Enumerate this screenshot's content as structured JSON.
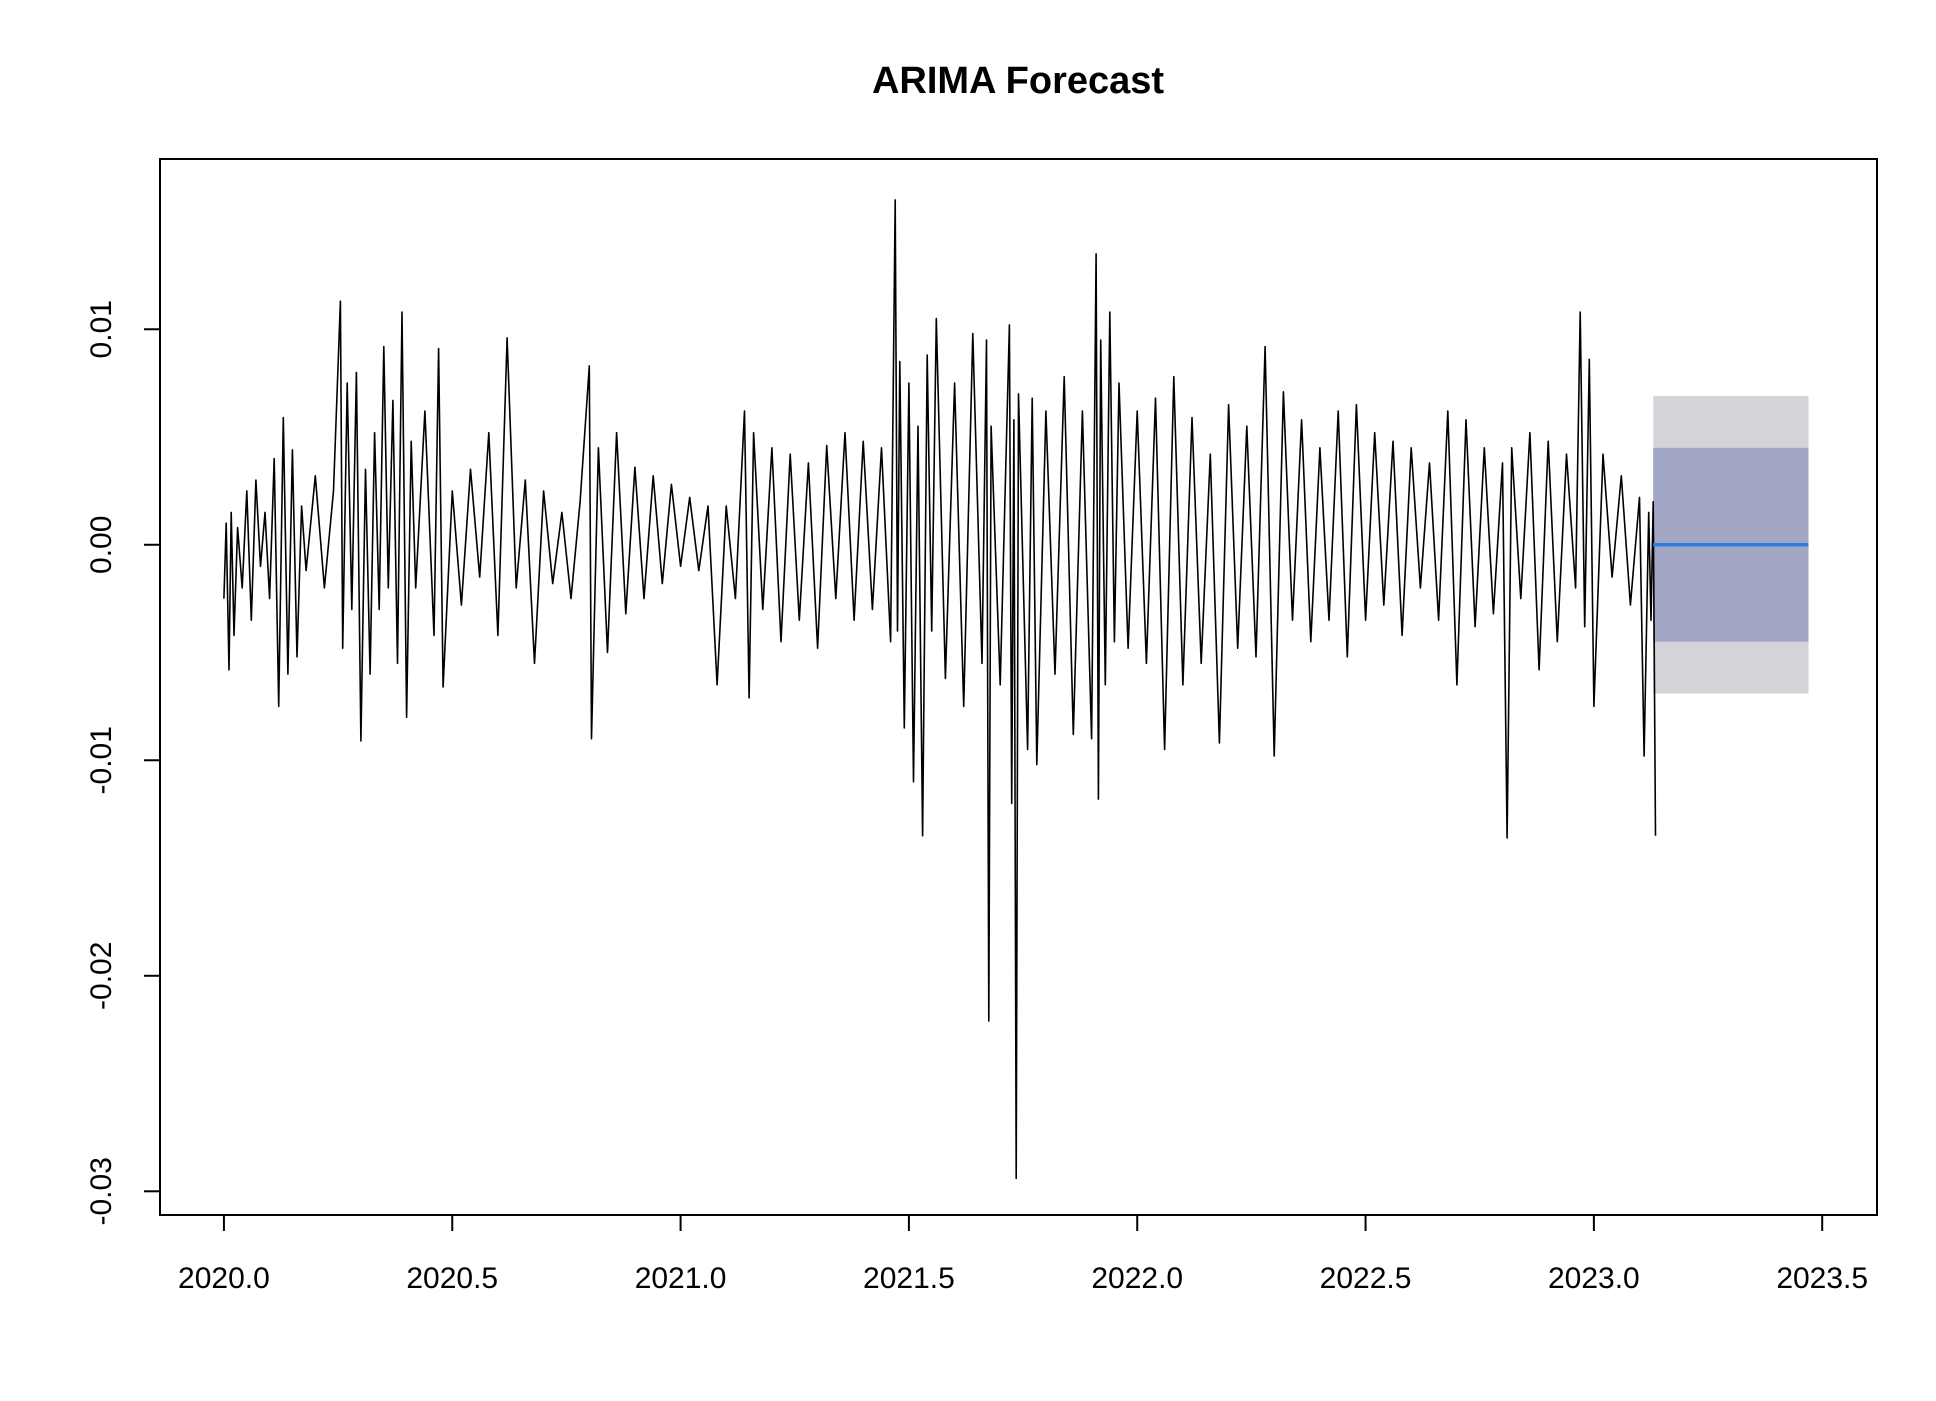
{
  "chart_data": {
    "type": "line",
    "title": "ARIMA Forecast",
    "xlabel": "",
    "ylabel": "",
    "xlim": [
      2019.86,
      2023.62
    ],
    "ylim": [
      -0.0311,
      0.0179
    ],
    "x_ticks": [
      2020.0,
      2020.5,
      2021.0,
      2021.5,
      2022.0,
      2022.5,
      2023.0,
      2023.5
    ],
    "x_tick_labels": [
      "2020.0",
      "2020.5",
      "2021.0",
      "2021.5",
      "2022.0",
      "2022.5",
      "2023.0",
      "2023.5"
    ],
    "y_ticks": [
      -0.03,
      -0.02,
      -0.01,
      0.0,
      0.01
    ],
    "y_tick_labels": [
      "-0.03",
      "-0.02",
      "-0.01",
      "0.00",
      "0.01"
    ],
    "grid": false,
    "legend": "none",
    "series": [
      {
        "role": "observed",
        "color": "#000000",
        "x": [
          2020.0,
          2020.005,
          2020.011,
          2020.016,
          2020.022,
          2020.03,
          2020.04,
          2020.05,
          2020.06,
          2020.07,
          2020.08,
          2020.09,
          2020.1,
          2020.11,
          2020.12,
          2020.13,
          2020.14,
          2020.15,
          2020.16,
          2020.17,
          2020.18,
          2020.2,
          2020.22,
          2020.24,
          2020.255,
          2020.26,
          2020.27,
          2020.28,
          2020.29,
          2020.3,
          2020.31,
          2020.32,
          2020.33,
          2020.34,
          2020.35,
          2020.36,
          2020.37,
          2020.38,
          2020.39,
          2020.4,
          2020.41,
          2020.42,
          2020.44,
          2020.46,
          2020.47,
          2020.48,
          2020.5,
          2020.52,
          2020.54,
          2020.56,
          2020.58,
          2020.6,
          2020.62,
          2020.64,
          2020.66,
          2020.68,
          2020.7,
          2020.72,
          2020.74,
          2020.76,
          2020.78,
          2020.8,
          2020.805,
          2020.82,
          2020.84,
          2020.86,
          2020.88,
          2020.9,
          2020.92,
          2020.94,
          2020.96,
          2020.98,
          2021.0,
          2021.02,
          2021.04,
          2021.06,
          2021.08,
          2021.1,
          2021.12,
          2021.14,
          2021.15,
          2021.16,
          2021.18,
          2021.2,
          2021.22,
          2021.24,
          2021.26,
          2021.28,
          2021.3,
          2021.32,
          2021.34,
          2021.36,
          2021.38,
          2021.4,
          2021.42,
          2021.44,
          2021.46,
          2021.47,
          2021.475,
          2021.48,
          2021.49,
          2021.5,
          2021.51,
          2021.52,
          2021.53,
          2021.54,
          2021.55,
          2021.56,
          2021.58,
          2021.6,
          2021.62,
          2021.64,
          2021.66,
          2021.67,
          2021.675,
          2021.68,
          2021.7,
          2021.72,
          2021.725,
          2021.73,
          2021.735,
          2021.74,
          2021.76,
          2021.77,
          2021.78,
          2021.8,
          2021.82,
          2021.84,
          2021.86,
          2021.88,
          2021.9,
          2021.91,
          2021.915,
          2021.92,
          2021.93,
          2021.94,
          2021.95,
          2021.96,
          2021.98,
          2022.0,
          2022.02,
          2022.04,
          2022.06,
          2022.08,
          2022.1,
          2022.12,
          2022.14,
          2022.16,
          2022.18,
          2022.2,
          2022.22,
          2022.24,
          2022.26,
          2022.28,
          2022.3,
          2022.32,
          2022.34,
          2022.36,
          2022.38,
          2022.4,
          2022.42,
          2022.44,
          2022.46,
          2022.48,
          2022.5,
          2022.52,
          2022.54,
          2022.56,
          2022.58,
          2022.6,
          2022.62,
          2022.64,
          2022.66,
          2022.68,
          2022.7,
          2022.72,
          2022.74,
          2022.76,
          2022.78,
          2022.8,
          2022.81,
          2022.82,
          2022.84,
          2022.86,
          2022.88,
          2022.9,
          2022.92,
          2022.94,
          2022.96,
          2022.97,
          2022.98,
          2022.99,
          2023.0,
          2023.02,
          2023.04,
          2023.06,
          2023.08,
          2023.1,
          2023.11,
          2023.12,
          2023.125,
          2023.13,
          2023.135
        ],
        "y": [
          -0.0025,
          0.001,
          -0.0058,
          0.0015,
          -0.0042,
          0.0008,
          -0.002,
          0.0025,
          -0.0035,
          0.003,
          -0.001,
          0.0015,
          -0.0025,
          0.004,
          -0.0075,
          0.0059,
          -0.006,
          0.0044,
          -0.0052,
          0.0018,
          -0.0012,
          0.0032,
          -0.002,
          0.0025,
          0.0113,
          -0.0048,
          0.0075,
          -0.003,
          0.008,
          -0.0091,
          0.0035,
          -0.006,
          0.0052,
          -0.003,
          0.0092,
          -0.002,
          0.0067,
          -0.0055,
          0.0108,
          -0.008,
          0.0048,
          -0.002,
          0.0062,
          -0.0042,
          0.0091,
          -0.0066,
          0.0025,
          -0.0028,
          0.0035,
          -0.0015,
          0.0052,
          -0.0042,
          0.0096,
          -0.002,
          0.003,
          -0.0055,
          0.0025,
          -0.0018,
          0.0015,
          -0.0025,
          0.002,
          0.0083,
          -0.009,
          0.0045,
          -0.005,
          0.0052,
          -0.0032,
          0.0036,
          -0.0025,
          0.0032,
          -0.0018,
          0.0028,
          -0.001,
          0.0022,
          -0.0012,
          0.0018,
          -0.0065,
          0.0018,
          -0.0025,
          0.0062,
          -0.0071,
          0.0052,
          -0.003,
          0.0045,
          -0.0045,
          0.0042,
          -0.0035,
          0.0038,
          -0.0048,
          0.0046,
          -0.0025,
          0.0052,
          -0.0035,
          0.0048,
          -0.003,
          0.0045,
          -0.0045,
          0.016,
          -0.004,
          0.0085,
          -0.0085,
          0.0075,
          -0.011,
          0.0055,
          -0.0135,
          0.0088,
          -0.004,
          0.0105,
          -0.0062,
          0.0075,
          -0.0075,
          0.0098,
          -0.0055,
          0.0095,
          -0.0221,
          0.0055,
          -0.0065,
          0.0102,
          -0.012,
          0.0058,
          -0.0294,
          0.007,
          -0.0095,
          0.0068,
          -0.0102,
          0.0062,
          -0.006,
          0.0078,
          -0.0088,
          0.0062,
          -0.009,
          0.0135,
          -0.0118,
          0.0095,
          -0.0065,
          0.0108,
          -0.0045,
          0.0075,
          -0.0048,
          0.0062,
          -0.0055,
          0.0068,
          -0.0095,
          0.0078,
          -0.0065,
          0.0059,
          -0.0055,
          0.0042,
          -0.0092,
          0.0065,
          -0.0048,
          0.0055,
          -0.0052,
          0.0092,
          -0.0098,
          0.0071,
          -0.0035,
          0.0058,
          -0.0045,
          0.0045,
          -0.0035,
          0.0062,
          -0.0052,
          0.0065,
          -0.0035,
          0.0052,
          -0.0028,
          0.0048,
          -0.0042,
          0.0045,
          -0.002,
          0.0038,
          -0.0035,
          0.0062,
          -0.0065,
          0.0058,
          -0.0038,
          0.0045,
          -0.0032,
          0.0038,
          -0.0136,
          0.0045,
          -0.0025,
          0.0052,
          -0.0058,
          0.0048,
          -0.0045,
          0.0042,
          -0.002,
          0.0108,
          -0.0038,
          0.0086,
          -0.0075,
          0.0042,
          -0.0015,
          0.0032,
          -0.0028,
          0.0022,
          -0.0098,
          0.0015,
          -0.0035,
          0.002,
          -0.0135
        ]
      },
      {
        "role": "forecast",
        "color": "#2d7ddf",
        "x": [
          2023.13,
          2023.47
        ],
        "y": [
          0.0,
          0.0
        ]
      }
    ],
    "intervals": [
      {
        "level": 95,
        "color": "#d3d3d8",
        "x": [
          2023.13,
          2023.47
        ],
        "lower": -0.0069,
        "upper": 0.0069
      },
      {
        "level": 80,
        "color": "#a3a7c6",
        "x": [
          2023.13,
          2023.47
        ],
        "lower": -0.0045,
        "upper": 0.0045
      }
    ]
  }
}
